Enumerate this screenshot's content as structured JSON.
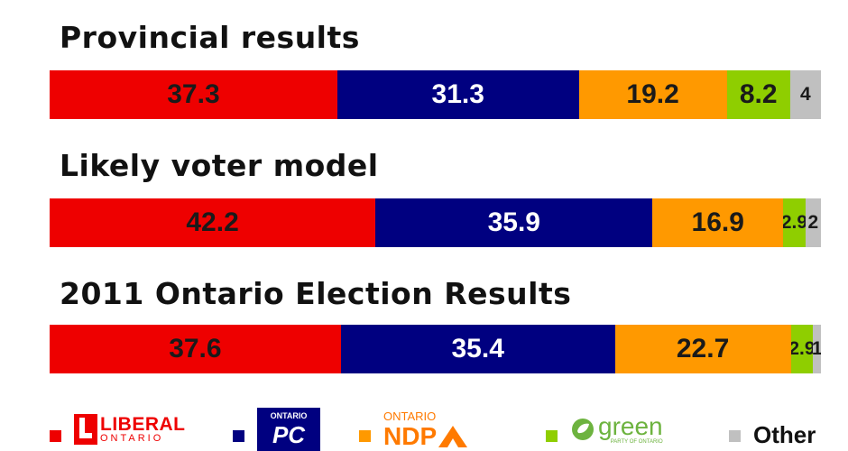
{
  "chart_data": [
    {
      "type": "bar",
      "orientation": "horizontal-stacked",
      "title": "Provincial results",
      "categories": [
        "Liberal",
        "PC",
        "NDP",
        "Green",
        "Other"
      ],
      "values": [
        37.3,
        31.3,
        19.2,
        8.2,
        4
      ],
      "labels": [
        "37.3",
        "31.3",
        "19.2",
        "8.2",
        "4"
      ]
    },
    {
      "type": "bar",
      "orientation": "horizontal-stacked",
      "title": "Likely voter model",
      "categories": [
        "Liberal",
        "PC",
        "NDP",
        "Green",
        "Other"
      ],
      "values": [
        42.2,
        35.9,
        16.9,
        2.9,
        2
      ],
      "labels": [
        "42.2",
        "35.9",
        "16.9",
        "2.9",
        "2"
      ]
    },
    {
      "type": "bar",
      "orientation": "horizontal-stacked",
      "title": "2011 Ontario Election Results",
      "categories": [
        "Liberal",
        "PC",
        "NDP",
        "Green",
        "Other"
      ],
      "values": [
        37.6,
        35.4,
        22.7,
        2.9,
        1
      ],
      "labels": [
        "37.6",
        "35.4",
        "22.7",
        "2.9",
        "1"
      ]
    }
  ],
  "party_colors": {
    "liberal": "#ee0000",
    "pc": "#000080",
    "ndp": "#ff9900",
    "green": "#8fce00",
    "other": "#c0c0c0"
  },
  "legend": {
    "liberal": {
      "logo_main": "LIBERAL",
      "logo_sub": "ONTARIO"
    },
    "pc": {
      "logo_main": "PC",
      "logo_top": "ONTARIO"
    },
    "ndp": {
      "logo_main": "NDP",
      "logo_top": "ONTARIO"
    },
    "green": {
      "logo_main": "green",
      "logo_sub": "PARTY OF ONTARIO"
    },
    "other": {
      "label": "Other"
    }
  }
}
